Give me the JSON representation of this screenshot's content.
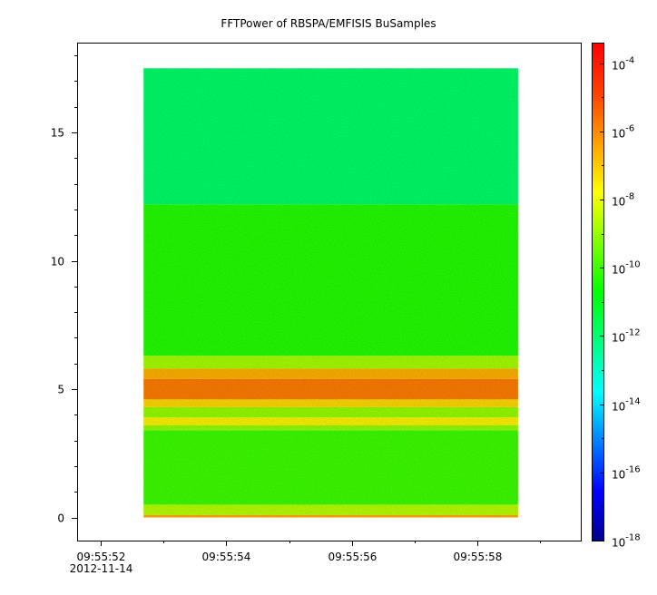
{
  "chart_data": {
    "type": "heatmap",
    "title": "FFTPower of RBSPA/EMFISIS  BuSamples",
    "xlabel": "",
    "ylabel": "",
    "x_ticks": [
      {
        "label": "09:55:52",
        "sublabel": "2012-11-14",
        "t": 0
      },
      {
        "label": "09:55:54",
        "t": 2
      },
      {
        "label": "09:55:56",
        "t": 4
      },
      {
        "label": "09:55:58",
        "t": 6
      }
    ],
    "x_minor_ticks": [
      1,
      3,
      5,
      7
    ],
    "x_range_seconds": [
      -0.38,
      7.65
    ],
    "data_time_range_seconds": [
      0.68,
      6.65
    ],
    "y_ticks": [
      0,
      5,
      10,
      15
    ],
    "y_range": [
      -0.9,
      18.5
    ],
    "data_y_range": [
      0.0,
      17.5
    ],
    "colorbar": {
      "scale": "log",
      "range_exponents": [
        -18,
        -3.4
      ],
      "ticks": [
        {
          "base": "10",
          "exp": "-4",
          "value": -4
        },
        {
          "base": "10",
          "exp": "-6",
          "value": -6
        },
        {
          "base": "10",
          "exp": "-8",
          "value": -8
        },
        {
          "base": "10",
          "exp": "-10",
          "value": -10
        },
        {
          "base": "10",
          "exp": "-12",
          "value": -12
        },
        {
          "base": "10",
          "exp": "-14",
          "value": -14
        },
        {
          "base": "10",
          "exp": "-16",
          "value": -16
        },
        {
          "base": "10",
          "exp": "-18",
          "value": -18
        }
      ],
      "colormap": [
        "#00008f",
        "#0000ff",
        "#0080ff",
        "#00ffff",
        "#00ff80",
        "#00ff00",
        "#80ff00",
        "#ffff00",
        "#ffa000",
        "#ff4000",
        "#ff0000"
      ]
    },
    "spectral_bands": [
      {
        "y_from": 0.0,
        "y_to": 0.1,
        "log_power": -6.5
      },
      {
        "y_from": 0.1,
        "y_to": 0.5,
        "log_power": -8.6
      },
      {
        "y_from": 0.5,
        "y_to": 3.4,
        "log_power": -10.0
      },
      {
        "y_from": 3.4,
        "y_to": 3.6,
        "log_power": -9.0
      },
      {
        "y_from": 3.6,
        "y_to": 3.9,
        "log_power": -7.6
      },
      {
        "y_from": 3.9,
        "y_to": 4.3,
        "log_power": -9.0
      },
      {
        "y_from": 4.3,
        "y_to": 4.6,
        "log_power": -7.2
      },
      {
        "y_from": 4.6,
        "y_to": 5.4,
        "log_power": -5.8
      },
      {
        "y_from": 5.4,
        "y_to": 5.8,
        "log_power": -6.6
      },
      {
        "y_from": 5.8,
        "y_to": 6.3,
        "log_power": -8.8
      },
      {
        "y_from": 6.3,
        "y_to": 12.2,
        "log_power": -10.3
      },
      {
        "y_from": 12.2,
        "y_to": 17.5,
        "log_power": -11.9
      }
    ]
  }
}
